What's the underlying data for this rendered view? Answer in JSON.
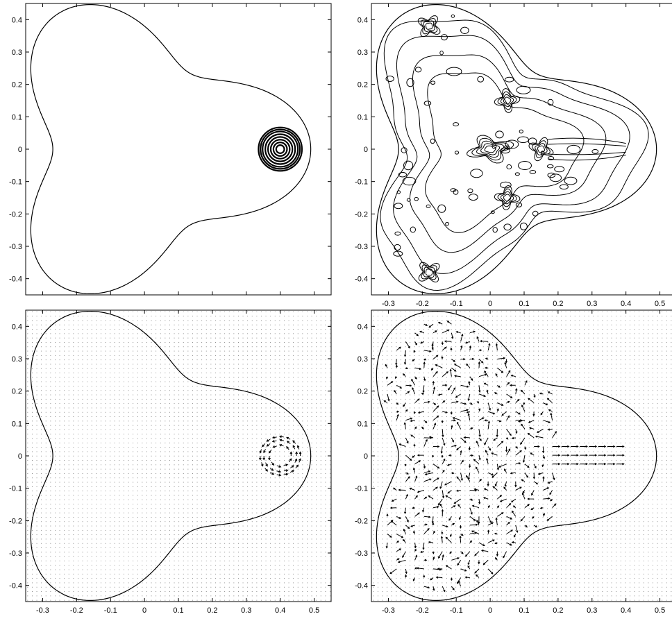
{
  "chart_data": [
    {
      "type": "contour",
      "position_label": "top-left",
      "title": "",
      "xlabel": "",
      "ylabel": "",
      "xlim": [
        -0.35,
        0.55
      ],
      "ylim": [
        -0.45,
        0.45
      ],
      "xticks": [],
      "yticks": [
        "-0.4",
        "-0.3",
        "-0.2",
        "-0.1",
        "0",
        "0.1",
        "0.2",
        "0.3",
        "0.4"
      ],
      "domain_boundary": "three-lobed region with lobe tips near (0.5, 0), (-0.2, 0.45), (-0.2, -0.45)",
      "feature": {
        "kind": "concentric-rings",
        "center": [
          0.4,
          0.0
        ],
        "radii": [
          0.012,
          0.02,
          0.028,
          0.036,
          0.044,
          0.052,
          0.058,
          0.064
        ]
      },
      "grid": false
    },
    {
      "type": "contour",
      "position_label": "top-right",
      "title": "",
      "xlabel": "",
      "ylabel": "",
      "xlim": [
        -0.35,
        0.55
      ],
      "ylim": [
        -0.45,
        0.45
      ],
      "xticks": [
        "-0.3",
        "-0.2",
        "-0.1",
        "0",
        "0.1",
        "0.2",
        "0.3",
        "0.4",
        "0.5"
      ],
      "yticks": [
        "-0.4",
        "-0.3",
        "-0.2",
        "-0.1",
        "0",
        "0.1",
        "0.2",
        "0.3",
        "0.4"
      ],
      "domain_boundary": "three-lobed region with lobe tips near (0.5, 0), (-0.2, 0.45), (-0.2, -0.45)",
      "feature": {
        "kind": "complex-contours",
        "hotspots": [
          [
            0.0,
            0.0
          ],
          [
            0.05,
            0.15
          ],
          [
            0.05,
            -0.15
          ],
          [
            0.15,
            0.0
          ],
          [
            -0.18,
            0.38
          ],
          [
            -0.18,
            -0.38
          ]
        ]
      },
      "grid": false
    },
    {
      "type": "quiver",
      "position_label": "bottom-left",
      "title": "",
      "xlabel": "",
      "ylabel": "",
      "xlim": [
        -0.35,
        0.55
      ],
      "ylim": [
        -0.45,
        0.45
      ],
      "xticks": [
        "-0.3",
        "-0.2",
        "-0.1",
        "0",
        "0.1",
        "0.2",
        "0.3",
        "0.4",
        "0.5"
      ],
      "yticks": [
        "-0.4",
        "-0.3",
        "-0.2",
        "-0.1",
        "0",
        "0.1",
        "0.2",
        "0.3",
        "0.4"
      ],
      "domain_boundary": "three-lobed region with lobe tips near (0.5, 0), (-0.2, 0.45), (-0.2, -0.45)",
      "feature": {
        "kind": "vortex",
        "center": [
          0.4,
          0.0
        ],
        "inner_radius": 0.02,
        "outer_radius": 0.065
      },
      "grid": false
    },
    {
      "type": "quiver",
      "position_label": "bottom-right",
      "title": "",
      "xlabel": "",
      "ylabel": "",
      "xlim": [
        -0.35,
        0.55
      ],
      "ylim": [
        -0.45,
        0.45
      ],
      "xticks": [
        "-0.3",
        "-0.2",
        "-0.1",
        "0",
        "0.1",
        "0.2",
        "0.3",
        "0.4",
        "0.5"
      ],
      "yticks": [
        "-0.4",
        "-0.3",
        "-0.2",
        "-0.1",
        "0",
        "0.1",
        "0.2",
        "0.3",
        "0.4"
      ],
      "domain_boundary": "three-lobed region with lobe tips near (0.5, 0), (-0.2, 0.45), (-0.2, -0.45)",
      "feature": {
        "kind": "turbulent-field",
        "region": "whole domain, strongest along lobe arms and near (0.15, 0)"
      },
      "grid": false
    }
  ]
}
